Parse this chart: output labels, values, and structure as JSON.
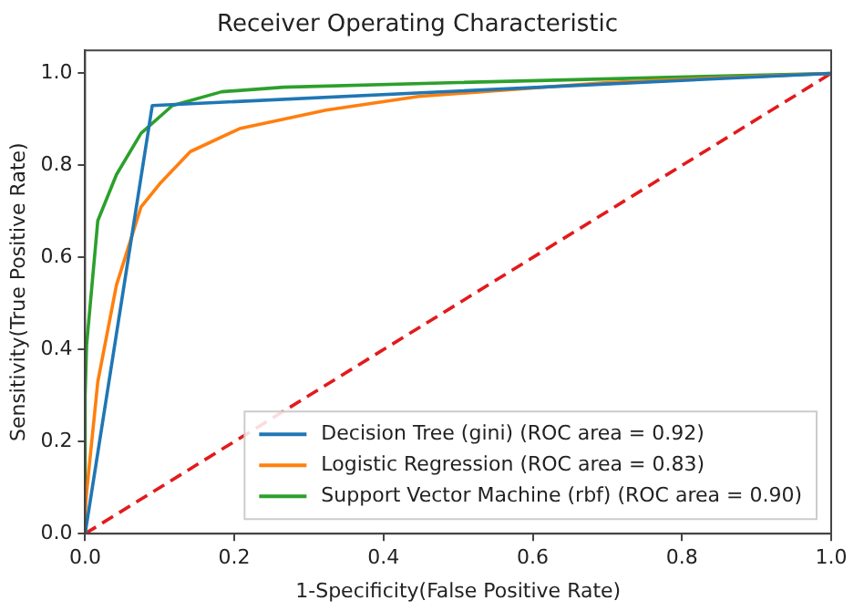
{
  "chart_data": {
    "type": "line",
    "title": "Receiver Operating Characteristic",
    "xlabel": "1-Specificity(False Positive Rate)",
    "ylabel": "Sensitivity(True Positive Rate)",
    "xlim": [
      0,
      1
    ],
    "ylim": [
      0,
      1.05
    ],
    "xticks": [
      {
        "value": 0,
        "label": "0.0"
      },
      0.2,
      0.4,
      0.6,
      0.8,
      {
        "value": 1,
        "label": "1.0"
      }
    ],
    "yticks": [
      {
        "value": 0,
        "label": "0.0"
      },
      0.2,
      0.4,
      0.6,
      0.8,
      {
        "value": 1,
        "label": "1.0"
      }
    ],
    "grid": false,
    "legend": "bottom right",
    "marker": "none",
    "series": [
      {
        "name": "Decision Tree (gini) (ROC area = 0.92)",
        "color": "#1f77b4",
        "x": [
          0,
          0.09,
          1
        ],
        "values": [
          0,
          0.93,
          1
        ]
      },
      {
        "name": "Logistic Regression (ROC area = 0.83)",
        "color": "#ff7f0e",
        "x": [
          0,
          0,
          0.002,
          0.017,
          0.042,
          0.075,
          0.1,
          0.141,
          0.207,
          0.323,
          0.447,
          0.7,
          1
        ],
        "values": [
          0,
          0.05,
          0.09,
          0.33,
          0.54,
          0.71,
          0.76,
          0.83,
          0.88,
          0.92,
          0.95,
          0.98,
          1
        ]
      },
      {
        "name": "Support Vector Machine (rbf) (ROC area = 0.90)",
        "color": "#2ca02c",
        "x": [
          0,
          0,
          0.002,
          0.017,
          0.042,
          0.075,
          0.117,
          0.183,
          0.266,
          0.5,
          1
        ],
        "values": [
          0,
          0.3,
          0.41,
          0.68,
          0.78,
          0.87,
          0.93,
          0.96,
          0.97,
          0.98,
          1
        ]
      },
      {
        "color": "#e31a1c",
        "line_style": "dashed",
        "x": [
          0,
          1
        ],
        "values": [
          0,
          1
        ]
      }
    ]
  }
}
